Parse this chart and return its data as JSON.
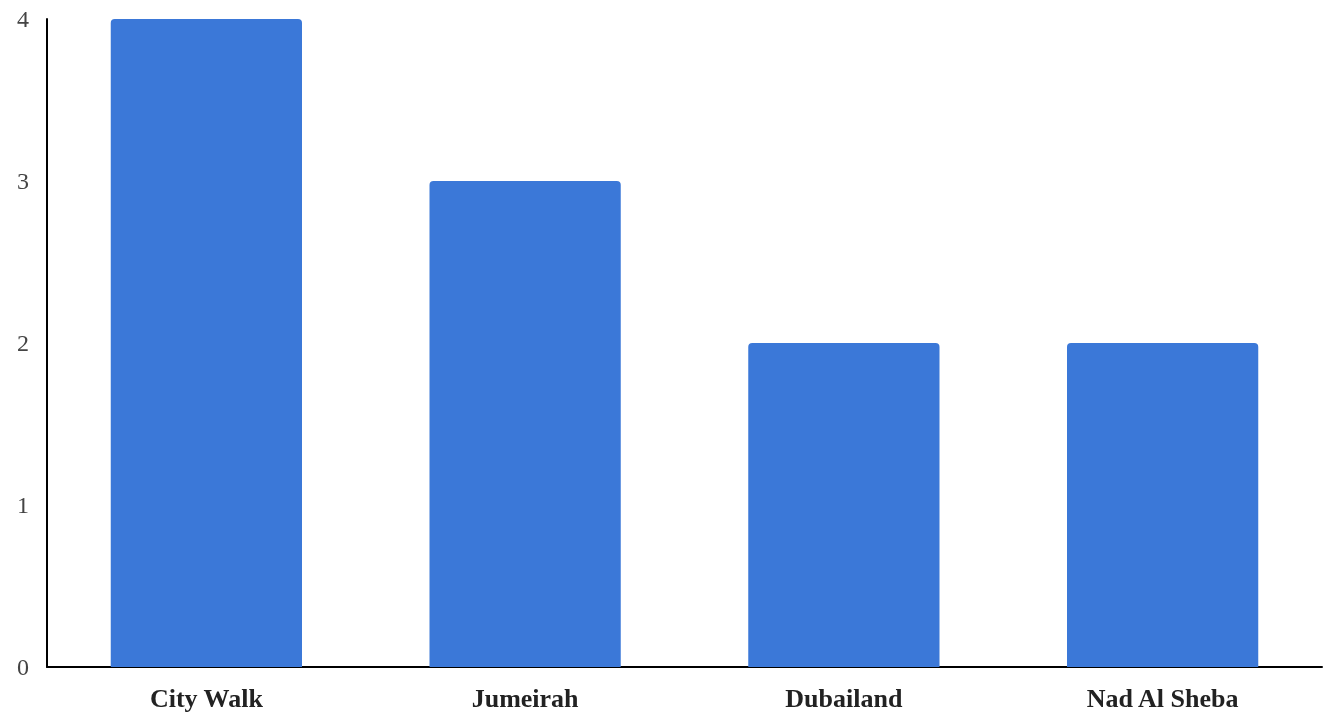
{
  "chart_data": {
    "type": "bar",
    "categories": [
      "City Walk",
      "Jumeirah",
      "Dubailand",
      "Nad Al Sheba"
    ],
    "values": [
      4,
      3,
      2,
      2
    ],
    "color": "#3b78d8",
    "ylim": [
      0,
      4
    ],
    "yticks": [
      0,
      1,
      2,
      3,
      4
    ],
    "grid": false
  }
}
